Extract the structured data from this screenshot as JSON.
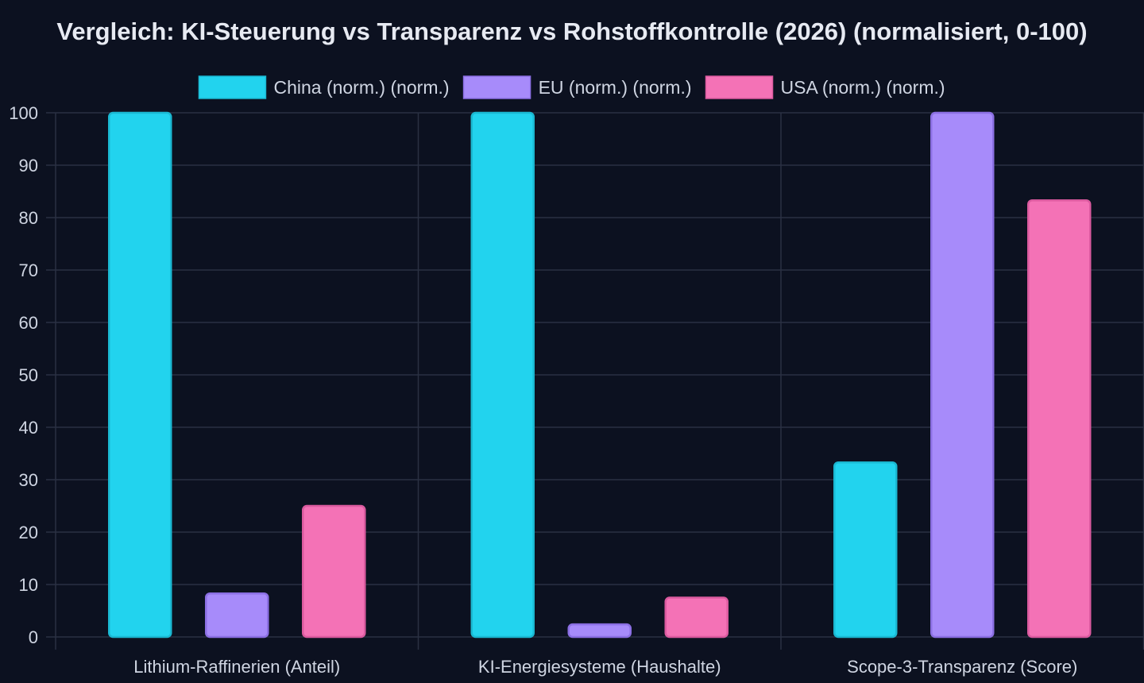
{
  "chart_data": {
    "type": "bar",
    "title": "Vergleich: KI-Steuerung vs Transparenz vs Rohstoffkontrolle (2026) (normalisiert, 0-100)",
    "xlabel": "",
    "ylabel": "",
    "ylim": [
      0,
      100
    ],
    "yticks": [
      0,
      10,
      20,
      30,
      40,
      50,
      60,
      70,
      80,
      90,
      100
    ],
    "grid": true,
    "legend_position": "top-center",
    "categories": [
      "Lithium-Raffinerien (Anteil)",
      "KI-Energiesysteme (Haushalte)",
      "Scope-3-Transparenz (Score)"
    ],
    "series": [
      {
        "name": "China (norm.) (norm.)",
        "color": "#22d3ee",
        "border": "#1ab8d2",
        "values": [
          100,
          100,
          33.3
        ]
      },
      {
        "name": "EU (norm.) (norm.)",
        "color": "#a78bfa",
        "border": "#8b6fe3",
        "values": [
          8.3,
          2.4,
          100
        ]
      },
      {
        "name": "USA (norm.) (norm.)",
        "color": "#f472b6",
        "border": "#db5a9f",
        "values": [
          25,
          7.5,
          83.3
        ]
      }
    ]
  }
}
